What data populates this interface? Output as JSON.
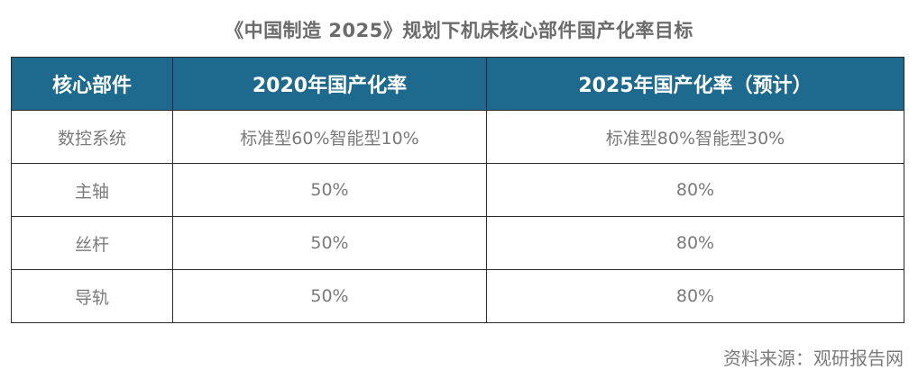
{
  "title": "《中国制造 2025》规划下机床核心部件国产化率目标",
  "table": {
    "headers": [
      "核心部件",
      "2020年国产化率",
      "2025年国产化率（预计）"
    ],
    "rows": [
      [
        "数控系统",
        "标准型60%智能型10%",
        "标准型80%智能型30%"
      ],
      [
        "主轴",
        "50%",
        "80%"
      ],
      [
        "丝杆",
        "50%",
        "80%"
      ],
      [
        "导轨",
        "50%",
        "80%"
      ]
    ]
  },
  "source": "资料来源：观研报告网"
}
